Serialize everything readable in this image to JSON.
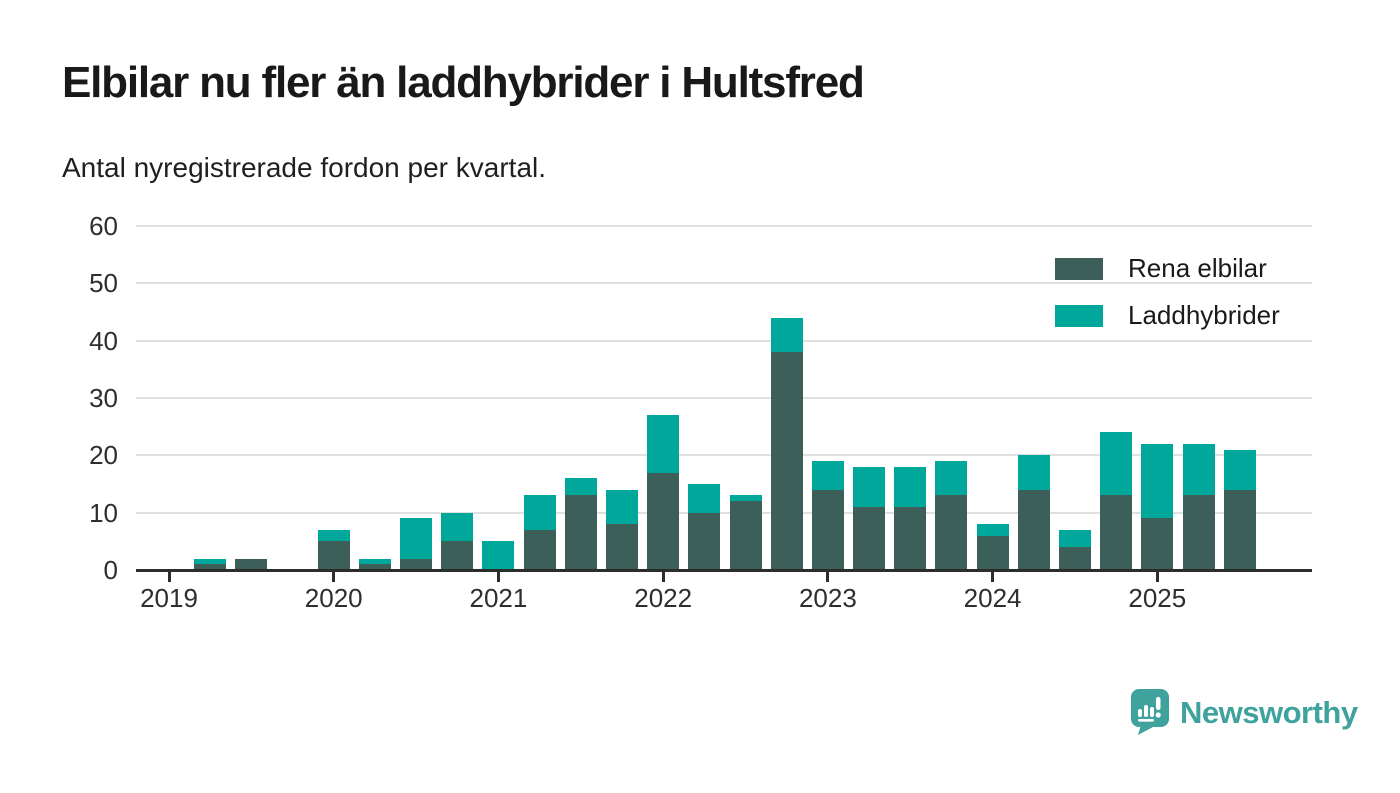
{
  "header": {
    "title": "Elbilar nu fler än laddhybrider i Hultsfred",
    "subtitle": "Antal nyregistrerade fordon per kvartal."
  },
  "legend": {
    "items": [
      {
        "label": "Rena elbilar",
        "color": "#3C6059"
      },
      {
        "label": "Laddhybrider",
        "color": "#00A89C"
      }
    ],
    "position": "top-right"
  },
  "brand": {
    "name": "Newsworthy",
    "color": "#3FA29C",
    "icon": "speech-bubble-bar-chart-icon"
  },
  "chart_data": {
    "type": "bar",
    "stacked": true,
    "title": "Elbilar nu fler än laddhybrider i Hultsfred",
    "subtitle": "Antal nyregistrerade fordon per kvartal.",
    "categories": [
      "2019 Q1",
      "2019 Q2",
      "2019 Q3",
      "2019 Q4",
      "2020 Q1",
      "2020 Q2",
      "2020 Q3",
      "2020 Q4",
      "2021 Q1",
      "2021 Q2",
      "2021 Q3",
      "2021 Q4",
      "2022 Q1",
      "2022 Q2",
      "2022 Q3",
      "2022 Q4",
      "2023 Q1",
      "2023 Q2",
      "2023 Q3",
      "2023 Q4",
      "2024 Q1",
      "2024 Q2",
      "2024 Q3",
      "2024 Q4",
      "2025 Q1",
      "2025 Q2",
      "2025 Q3"
    ],
    "series": [
      {
        "name": "Rena elbilar",
        "color": "#3C6059",
        "values": [
          0,
          1,
          2,
          0,
          5,
          1,
          2,
          5,
          0,
          7,
          13,
          8,
          17,
          10,
          12,
          38,
          14,
          11,
          11,
          13,
          6,
          14,
          4,
          13,
          9,
          13,
          14
        ]
      },
      {
        "name": "Laddhybrider",
        "color": "#00A89C",
        "values": [
          0,
          1,
          0,
          0,
          2,
          1,
          7,
          5,
          5,
          6,
          3,
          6,
          10,
          5,
          1,
          6,
          5,
          7,
          7,
          6,
          2,
          6,
          3,
          11,
          13,
          9,
          7
        ]
      }
    ],
    "xlabel": "",
    "ylabel": "",
    "ylim": [
      0,
      60
    ],
    "yticks": [
      0,
      10,
      20,
      30,
      40,
      50,
      60
    ],
    "x_tick_labels": [
      "2019",
      "2020",
      "2021",
      "2022",
      "2023",
      "2024",
      "2025"
    ],
    "grid": "horizontal",
    "legend_position": "top-right",
    "gridline_color": "#e0e0e0",
    "axis_color": "#2d2d2d"
  }
}
